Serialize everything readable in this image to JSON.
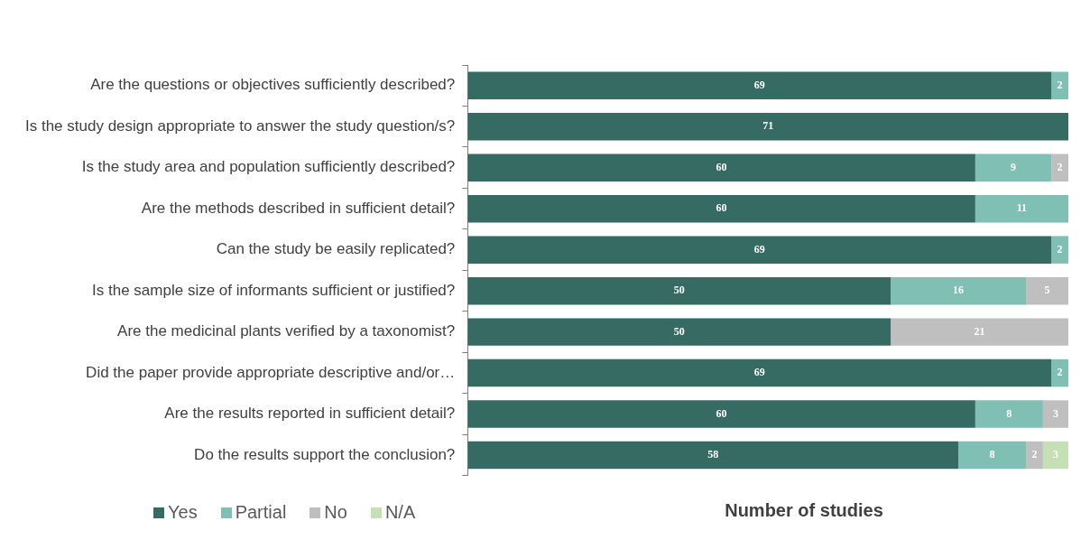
{
  "chart_data": {
    "type": "bar",
    "orientation": "horizontal",
    "stacked": true,
    "xlabel": "Number of studies",
    "categories": [
      "Are the questions or objectives sufficiently described?",
      "Is the study design appropriate to answer the study question/s?",
      "Is the study area and population sufficiently described?",
      "Are the methods described in sufficient detail?",
      "Can the study be easily replicated?",
      "Is the sample size of informants sufficient or justified?",
      "Are the medicinal plants verified by a taxonomist?",
      "Did the paper provide appropriate descriptive and/or…",
      "Are the results reported in sufficient detail?",
      "Do the results support the conclusion?"
    ],
    "series": [
      {
        "name": "Yes",
        "color": "#356b62",
        "values": [
          69,
          71,
          60,
          60,
          69,
          50,
          50,
          69,
          60,
          58
        ]
      },
      {
        "name": "Partial",
        "color": "#7fbfb4",
        "values": [
          2,
          null,
          9,
          11,
          2,
          16,
          null,
          2,
          8,
          8
        ]
      },
      {
        "name": "No",
        "color": "#bfbfbf",
        "values": [
          null,
          null,
          2,
          null,
          null,
          5,
          21,
          null,
          3,
          2
        ]
      },
      {
        "name": "N/A",
        "color": "#c5e0b4",
        "values": [
          null,
          null,
          null,
          null,
          null,
          null,
          null,
          null,
          null,
          3
        ]
      }
    ],
    "data_labels": true,
    "legend": "bottom left"
  }
}
